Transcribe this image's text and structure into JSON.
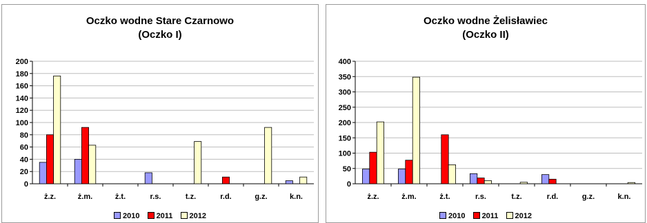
{
  "colors": {
    "2010": "#9999ff",
    "2011": "#ff0000",
    "2012": "#ffffcc"
  },
  "chart_data": [
    {
      "type": "bar",
      "title": "Oczko wodne Stare Czarnowo",
      "subtitle": "(Oczko I)",
      "categories": [
        "ż.z.",
        "ż.m.",
        "ż.t.",
        "r.s.",
        "t.z.",
        "r.d.",
        "g.z.",
        "k.n."
      ],
      "series": [
        {
          "name": "2010",
          "values": [
            35,
            40,
            0,
            18,
            0,
            0,
            0,
            5
          ]
        },
        {
          "name": "2011",
          "values": [
            80,
            92,
            0,
            0,
            0,
            11,
            0,
            0
          ]
        },
        {
          "name": "2012",
          "values": [
            176,
            63,
            0,
            0,
            69,
            0,
            92,
            11
          ]
        }
      ],
      "ylim": [
        0,
        200
      ],
      "yticks": [
        0,
        20,
        40,
        60,
        80,
        100,
        120,
        140,
        160,
        180,
        200
      ],
      "grid": true,
      "legend_position": "bottom"
    },
    {
      "type": "bar",
      "title": "Oczko wodne Żelisławiec",
      "subtitle": "(Oczko II)",
      "categories": [
        "ż.z.",
        "ż.m.",
        "ż.t.",
        "r.s.",
        "t.z.",
        "r.d.",
        "g.z.",
        "k.n."
      ],
      "series": [
        {
          "name": "2010",
          "values": [
            48,
            48,
            0,
            33,
            0,
            30,
            0,
            0
          ]
        },
        {
          "name": "2011",
          "values": [
            103,
            77,
            160,
            19,
            0,
            15,
            0,
            0
          ]
        },
        {
          "name": "2012",
          "values": [
            202,
            348,
            62,
            10,
            5,
            0,
            0,
            4
          ]
        }
      ],
      "ylim": [
        0,
        400
      ],
      "yticks": [
        0,
        50,
        100,
        150,
        200,
        250,
        300,
        350,
        400
      ],
      "grid": true,
      "legend_position": "bottom"
    }
  ]
}
